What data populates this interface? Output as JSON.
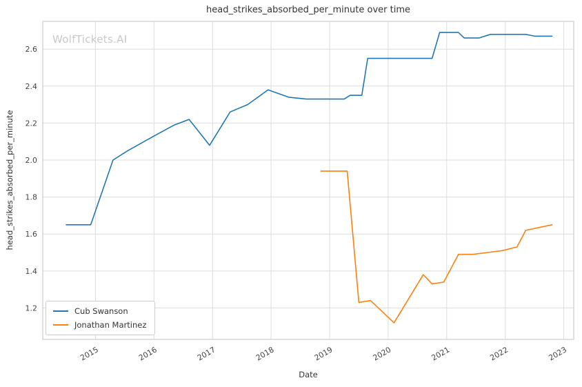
{
  "watermark": "WolfTickets.AI",
  "chart_data": {
    "type": "line",
    "title": "head_strikes_absorbed_per_minute over time",
    "xlabel": "Date",
    "ylabel": "head_strikes_absorbed_per_minute",
    "xlim": [
      2014.1,
      2023.17
    ],
    "ylim": [
      1.03,
      2.75
    ],
    "x_ticks": [
      2015,
      2016,
      2017,
      2018,
      2019,
      2020,
      2021,
      2022,
      2023
    ],
    "y_ticks": [
      1.2,
      1.4,
      1.6,
      1.8,
      2.0,
      2.2,
      2.4,
      2.6
    ],
    "grid": true,
    "legend_position": "lower left",
    "series": [
      {
        "name": "Cub Swanson",
        "color": "#1f77b4",
        "points": [
          [
            2014.5,
            1.65
          ],
          [
            2014.92,
            1.65
          ],
          [
            2015.3,
            2.0
          ],
          [
            2015.55,
            2.05
          ],
          [
            2016.0,
            2.13
          ],
          [
            2016.35,
            2.19
          ],
          [
            2016.6,
            2.22
          ],
          [
            2016.95,
            2.08
          ],
          [
            2017.3,
            2.26
          ],
          [
            2017.6,
            2.3
          ],
          [
            2017.95,
            2.38
          ],
          [
            2018.3,
            2.34
          ],
          [
            2018.6,
            2.33
          ],
          [
            2019.0,
            2.33
          ],
          [
            2019.25,
            2.33
          ],
          [
            2019.35,
            2.35
          ],
          [
            2019.55,
            2.35
          ],
          [
            2019.65,
            2.55
          ],
          [
            2019.95,
            2.55
          ],
          [
            2020.75,
            2.55
          ],
          [
            2020.88,
            2.69
          ],
          [
            2021.2,
            2.69
          ],
          [
            2021.3,
            2.66
          ],
          [
            2021.55,
            2.66
          ],
          [
            2021.75,
            2.68
          ],
          [
            2022.05,
            2.68
          ],
          [
            2022.35,
            2.68
          ],
          [
            2022.5,
            2.67
          ],
          [
            2022.8,
            2.67
          ]
        ]
      },
      {
        "name": "Jonathan Martinez",
        "color": "#ff7f0e",
        "points": [
          [
            2018.85,
            1.94
          ],
          [
            2019.3,
            1.94
          ],
          [
            2019.5,
            1.23
          ],
          [
            2019.7,
            1.24
          ],
          [
            2020.1,
            1.12
          ],
          [
            2020.6,
            1.38
          ],
          [
            2020.75,
            1.33
          ],
          [
            2020.95,
            1.34
          ],
          [
            2021.2,
            1.49
          ],
          [
            2021.45,
            1.49
          ],
          [
            2021.7,
            1.5
          ],
          [
            2021.95,
            1.51
          ],
          [
            2022.2,
            1.53
          ],
          [
            2022.35,
            1.62
          ],
          [
            2022.8,
            1.65
          ]
        ]
      }
    ]
  }
}
